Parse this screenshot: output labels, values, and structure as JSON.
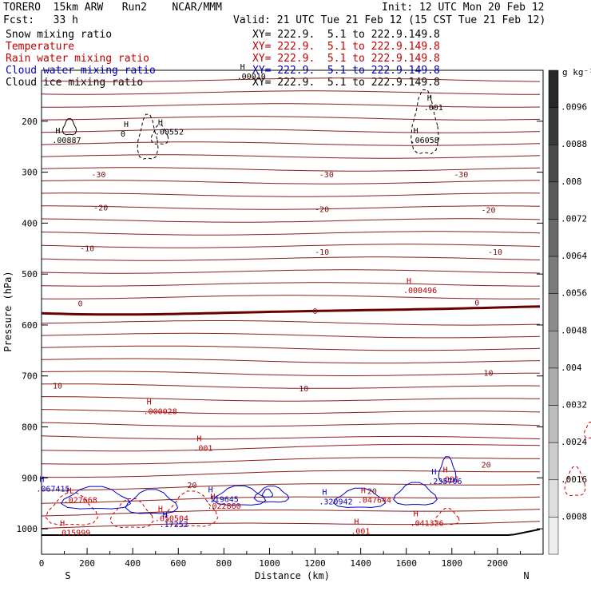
{
  "header": {
    "model": "TORERO  15km ARW   Run2    NCAR/MMM",
    "init": "Init: 12 UTC Mon 20 Feb 12",
    "fcst": "Fcst:   33 h",
    "valid": "Valid: 21 UTC Tue 21 Feb 12 (15 CST Tue 21 Feb 12)"
  },
  "fields": [
    {
      "name": "Snow mixing ratio",
      "xy": "XY= 222.9.  5.1 to 222.9.149.8",
      "color": "#000000"
    },
    {
      "name": "Temperature",
      "xy": "XY= 222.9.  5.1 to 222.9.149.8",
      "color": "#c00000"
    },
    {
      "name": "Rain water mixing ratio",
      "xy": "XY= 222.9.  5.1 to 222.9.149.8",
      "color": "#c00000"
    },
    {
      "name": "Cloud water mixing ratio",
      "xy": "XY= 222.9.  5.1 to 222.9.149.8",
      "color": "#0000c0"
    },
    {
      "name": "Cloud ice mixing ratio",
      "xy": "XY= 222.9.  5.1 to 222.9.149.8",
      "color": "#000000"
    }
  ],
  "colorbar": {
    "unit": "g kg⁻¹",
    "labels": [
      ".0096",
      ".0088",
      ".008",
      ".0072",
      ".0064",
      ".0056",
      ".0048",
      ".004",
      ".0032",
      ".0024",
      ".0016",
      ".0008"
    ]
  },
  "chart_data": {
    "type": "contour",
    "xlabel": "Distance (km)",
    "ylabel": "Pressure (hPa)",
    "xlim": [
      0,
      2200
    ],
    "ylim": [
      1050,
      100
    ],
    "xticks": [
      0,
      200,
      400,
      600,
      800,
      1000,
      1200,
      1400,
      1600,
      1800,
      2000
    ],
    "yticks": [
      200,
      300,
      400,
      500,
      600,
      700,
      800,
      900,
      1000
    ],
    "endpoints": {
      "left": "S",
      "right": "N"
    },
    "temperature_contour_labels": [
      {
        "value": "-30",
        "x": 250,
        "p": 310
      },
      {
        "value": "-30",
        "x": 1250,
        "p": 310
      },
      {
        "value": "-30",
        "x": 1840,
        "p": 310
      },
      {
        "value": "-20",
        "x": 260,
        "p": 375
      },
      {
        "value": "-20",
        "x": 1230,
        "p": 378
      },
      {
        "value": "-20",
        "x": 1960,
        "p": 380
      },
      {
        "value": "-10",
        "x": 200,
        "p": 455
      },
      {
        "value": "-10",
        "x": 1230,
        "p": 462
      },
      {
        "value": "-10",
        "x": 1990,
        "p": 462
      },
      {
        "value": "0",
        "x": 170,
        "p": 563
      },
      {
        "value": "0",
        "x": 1200,
        "p": 578
      },
      {
        "value": "0",
        "x": 1910,
        "p": 562
      },
      {
        "value": "10",
        "x": 70,
        "p": 725
      },
      {
        "value": "10",
        "x": 1150,
        "p": 730
      },
      {
        "value": "10",
        "x": 1960,
        "p": 700
      },
      {
        "value": "20",
        "x": 660,
        "p": 920
      },
      {
        "value": "20",
        "x": 1450,
        "p": 932
      },
      {
        "value": "20",
        "x": 1950,
        "p": 880
      }
    ],
    "extrema_labels": [
      {
        "text": ".00010",
        "x": 920,
        "p": 117,
        "color": "#000000"
      },
      {
        "text": ".001",
        "x": 1740,
        "p": 178,
        "color": "#000000"
      },
      {
        "text": ".00887",
        "x": 110,
        "p": 243,
        "color": "#000000"
      },
      {
        "text": ".00552",
        "x": 560,
        "p": 226,
        "color": "#000000"
      },
      {
        "text": ".06058",
        "x": 1680,
        "p": 243,
        "color": "#000000"
      },
      {
        "text": "0",
        "x": 410,
        "p": 230,
        "color": "#000000"
      },
      {
        "text": ".000496",
        "x": 1650,
        "p": 537,
        "color": "#c00000"
      },
      {
        "text": ".000028",
        "x": 510,
        "p": 775,
        "color": "#c00000"
      },
      {
        "text": ".001",
        "x": 730,
        "p": 847,
        "color": "#c00000"
      },
      {
        "text": ".001",
        "x": 1810,
        "p": 908,
        "color": "#c00000"
      },
      {
        "text": ".001",
        "x": 1420,
        "p": 1010,
        "color": "#c00000"
      },
      {
        "text": ".027668",
        "x": 160,
        "p": 949,
        "color": "#c00000"
      },
      {
        "text": ".050504",
        "x": 560,
        "p": 985,
        "color": "#c00000"
      },
      {
        "text": ".015999",
        "x": 130,
        "p": 1013,
        "color": "#c00000"
      },
      {
        "text": ".022860",
        "x": 790,
        "p": 961,
        "color": "#c00000"
      },
      {
        "text": ".047644",
        "x": 1450,
        "p": 949,
        "color": "#c00000"
      },
      {
        "text": ".041326",
        "x": 1680,
        "p": 994,
        "color": "#c00000"
      },
      {
        "text": ".067415",
        "x": 40,
        "p": 927,
        "color": "#0000c0"
      },
      {
        "text": ".119645",
        "x": 780,
        "p": 947,
        "color": "#0000c0"
      },
      {
        "text": ".17252",
        "x": 580,
        "p": 997,
        "color": "#0000c0"
      },
      {
        "text": ".320942",
        "x": 1280,
        "p": 952,
        "color": "#0000c0"
      },
      {
        "text": ".235706",
        "x": 1760,
        "p": 912,
        "color": "#0000c0"
      }
    ]
  }
}
